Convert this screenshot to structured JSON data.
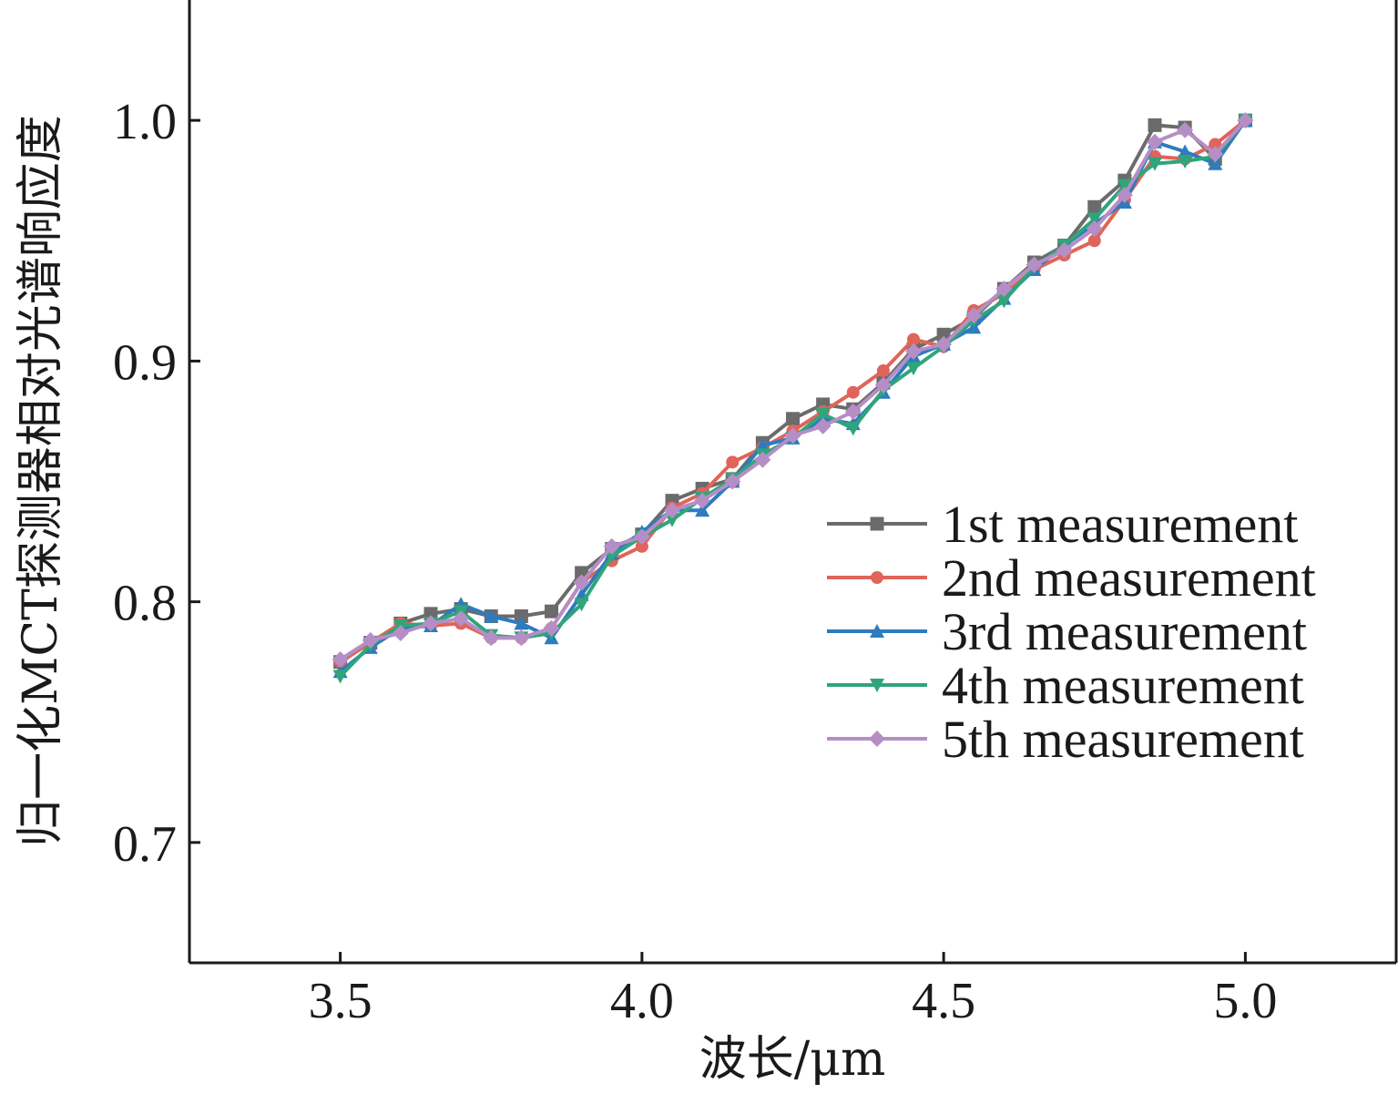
{
  "chart_data": {
    "type": "line",
    "xlabel": "波长/μm",
    "ylabel": "归一化MCT探测器相对光谱响应度",
    "xlim": [
      3.25,
      5.25
    ],
    "ylim": [
      0.65,
      1.05
    ],
    "xticks": [
      3.5,
      4.0,
      4.5,
      5.0
    ],
    "xtick_labels": [
      "3.5",
      "4.0",
      "4.5",
      "5.0"
    ],
    "yticks": [
      0.7,
      0.8,
      0.9,
      1.0
    ],
    "ytick_labels": [
      "0.7",
      "0.8",
      "0.9",
      "1.0"
    ],
    "legend_position": "center-right",
    "x": [
      3.5,
      3.55,
      3.6,
      3.65,
      3.7,
      3.75,
      3.8,
      3.85,
      3.9,
      3.95,
      4.0,
      4.05,
      4.1,
      4.15,
      4.2,
      4.25,
      4.3,
      4.35,
      4.4,
      4.45,
      4.5,
      4.55,
      4.6,
      4.65,
      4.7,
      4.75,
      4.8,
      4.85,
      4.9,
      4.95,
      5.0
    ],
    "series": [
      {
        "name": "1st measurement",
        "color": "#6b6b6b",
        "marker": "square",
        "values": [
          0.775,
          0.783,
          0.791,
          0.795,
          0.797,
          0.794,
          0.794,
          0.796,
          0.812,
          0.822,
          0.828,
          0.842,
          0.847,
          0.851,
          0.866,
          0.876,
          0.882,
          0.88,
          0.891,
          0.905,
          0.911,
          0.918,
          0.93,
          0.941,
          0.948,
          0.964,
          0.975,
          0.998,
          0.997,
          0.984,
          1.0
        ]
      },
      {
        "name": "2nd measurement",
        "color": "#e0645a",
        "marker": "circle",
        "values": [
          0.775,
          0.783,
          0.791,
          0.79,
          0.791,
          0.785,
          0.785,
          0.789,
          0.808,
          0.817,
          0.823,
          0.839,
          0.845,
          0.858,
          0.864,
          0.871,
          0.879,
          0.887,
          0.896,
          0.909,
          0.906,
          0.921,
          0.928,
          0.938,
          0.944,
          0.95,
          0.967,
          0.985,
          0.984,
          0.99,
          1.0
        ]
      },
      {
        "name": "3rd measurement",
        "color": "#2e7bbf",
        "marker": "triangle-up",
        "values": [
          0.771,
          0.781,
          0.789,
          0.79,
          0.799,
          0.794,
          0.791,
          0.785,
          0.803,
          0.82,
          0.829,
          0.838,
          0.838,
          0.85,
          0.865,
          0.868,
          0.876,
          0.874,
          0.887,
          0.902,
          0.907,
          0.914,
          0.926,
          0.938,
          0.948,
          0.957,
          0.966,
          0.991,
          0.987,
          0.982,
          1.0
        ]
      },
      {
        "name": "4th measurement",
        "color": "#2fa57a",
        "marker": "triangle-down",
        "values": [
          0.769,
          0.782,
          0.79,
          0.791,
          0.796,
          0.786,
          0.785,
          0.787,
          0.799,
          0.819,
          0.827,
          0.834,
          0.843,
          0.851,
          0.861,
          0.868,
          0.878,
          0.872,
          0.888,
          0.897,
          0.906,
          0.917,
          0.925,
          0.939,
          0.948,
          0.959,
          0.973,
          0.982,
          0.983,
          0.985,
          1.0
        ]
      },
      {
        "name": "5th measurement",
        "color": "#b58ec6",
        "marker": "diamond",
        "values": [
          0.776,
          0.784,
          0.787,
          0.791,
          0.793,
          0.785,
          0.785,
          0.789,
          0.808,
          0.823,
          0.827,
          0.838,
          0.842,
          0.85,
          0.859,
          0.869,
          0.873,
          0.879,
          0.89,
          0.904,
          0.907,
          0.919,
          0.93,
          0.94,
          0.946,
          0.955,
          0.969,
          0.991,
          0.996,
          0.986,
          1.0
        ]
      }
    ]
  }
}
